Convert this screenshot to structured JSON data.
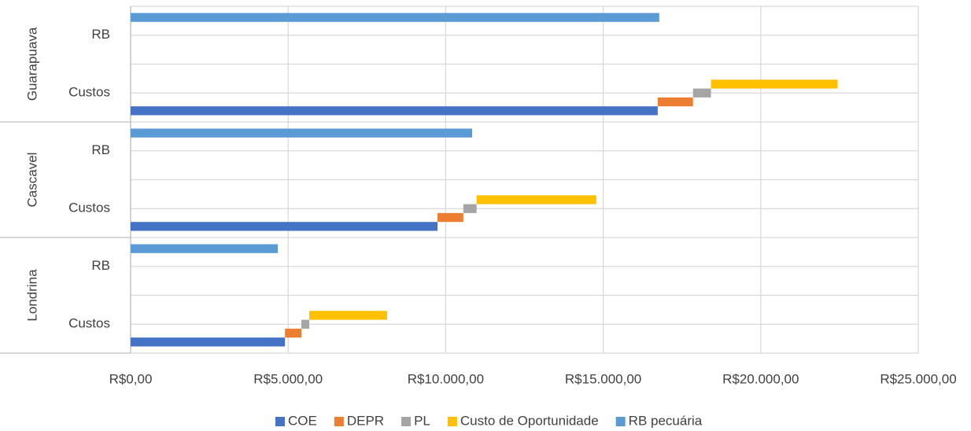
{
  "chart_data": {
    "type": "bar",
    "orientation": "horizontal",
    "stacked": true,
    "groups": [
      {
        "name": "Guarapuava",
        "categories": [
          "RB",
          "Custos"
        ]
      },
      {
        "name": "Cascavel",
        "categories": [
          "RB",
          "Custos"
        ]
      },
      {
        "name": "Londrina",
        "categories": [
          "RB",
          "Custos"
        ]
      }
    ],
    "series": [
      {
        "name": "COE",
        "color": "#4472c4",
        "values": [
          null,
          16730,
          null,
          9740,
          null,
          4900
        ]
      },
      {
        "name": "DEPR",
        "color": "#ed7d31",
        "values": [
          null,
          1120,
          null,
          820,
          null,
          520
        ]
      },
      {
        "name": "PL",
        "color": "#a5a5a5",
        "values": [
          null,
          570,
          null,
          420,
          null,
          250
        ]
      },
      {
        "name": "Custo de Oportunidade",
        "color": "#ffc000",
        "values": [
          null,
          4020,
          null,
          3800,
          null,
          2470
        ]
      },
      {
        "name": "RB pecuária",
        "color": "#5b9bd5",
        "values": [
          16780,
          null,
          10840,
          null,
          4670,
          null
        ]
      }
    ],
    "xlim": [
      0,
      25000
    ],
    "xticks": [
      {
        "value": 0,
        "label": "R$0,00"
      },
      {
        "value": 5000,
        "label": "R$5.000,00"
      },
      {
        "value": 10000,
        "label": "R$10.000,00"
      },
      {
        "value": 15000,
        "label": "R$15.000,00"
      },
      {
        "value": 20000,
        "label": "R$20.000,00"
      },
      {
        "value": 25000,
        "label": "R$25.000,00"
      }
    ],
    "grid": true,
    "legend": "bottom"
  }
}
